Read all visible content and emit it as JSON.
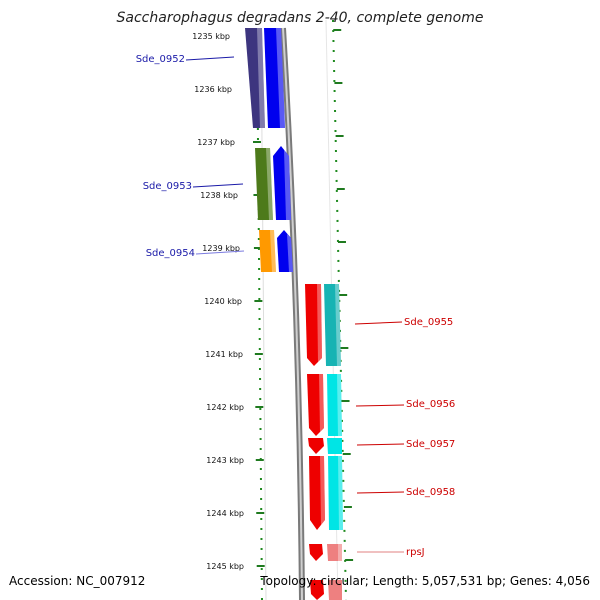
{
  "title": "Saccharophagus degradans 2-40, complete genome",
  "footer": {
    "accession": "Accession: NC_007912",
    "summary": "Topology: circular; Length: 5,057,531 bp; Genes: 4,056"
  },
  "ticks": [
    "1235 kbp",
    "1236 kbp",
    "1237 kbp",
    "1238 kbp",
    "1239 kbp",
    "1240 kbp",
    "1241 kbp",
    "1242 kbp",
    "1243 kbp",
    "1244 kbp",
    "1245 kbp"
  ],
  "genes_left": [
    {
      "name": "Sde_0952",
      "color": "#1a1aa8"
    },
    {
      "name": "Sde_0953",
      "color": "#1a1aa8"
    },
    {
      "name": "Sde_0954",
      "color": "#1a1aa8"
    }
  ],
  "genes_right": [
    {
      "name": "Sde_0955",
      "color": "#cc0000"
    },
    {
      "name": "Sde_0956",
      "color": "#cc0000"
    },
    {
      "name": "Sde_0957",
      "color": "#cc0000"
    },
    {
      "name": "Sde_0958",
      "color": "#cc0000"
    },
    {
      "name": "rpsJ",
      "color": "#cc0000"
    }
  ],
  "colors": {
    "forward_strand": "#0000ee",
    "reverse_strand": "#ee0000",
    "cog_purple": "#3d357f",
    "cog_green": "#4d7a1a",
    "cog_orange": "#ff9900",
    "cog_teal": "#17b3b3",
    "cog_cyan": "#00e5e5",
    "cog_pink": "#ee8080",
    "tick_green": "#1f7a1f",
    "backbone": "#888888"
  }
}
